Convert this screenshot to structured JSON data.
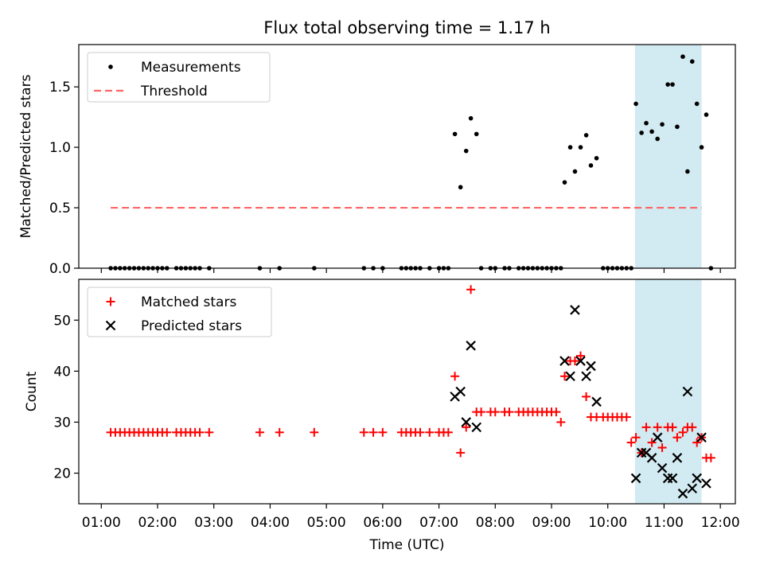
{
  "chart_data": [
    {
      "type": "scatter",
      "title": "Flux total observing time = 1.17 h",
      "xlabel": "",
      "ylabel": "Matched/Predicted stars",
      "xlim": [
        "00:36",
        "12:16"
      ],
      "ylim": [
        0,
        1.85
      ],
      "yticks": [
        "0.0",
        "0.5",
        "1.0",
        "1.5"
      ],
      "grid": false,
      "legend_position": "top-left",
      "highlight_span": {
        "start": "10:29",
        "end": "11:40",
        "color": "#add8e6"
      },
      "threshold": {
        "name": "Threshold",
        "value": 0.5,
        "x_start": "01:10",
        "x_end": "11:40",
        "color": "#ff6666",
        "style": "dashed"
      },
      "series": [
        {
          "name": "Measurements",
          "marker": "dot",
          "color": "#000000",
          "points": [
            [
              "01:10",
              0
            ],
            [
              "01:15",
              0
            ],
            [
              "01:20",
              0
            ],
            [
              "01:25",
              0
            ],
            [
              "01:30",
              0
            ],
            [
              "01:35",
              0
            ],
            [
              "01:40",
              0
            ],
            [
              "01:45",
              0
            ],
            [
              "01:50",
              0
            ],
            [
              "01:55",
              0
            ],
            [
              "02:00",
              0
            ],
            [
              "02:05",
              0
            ],
            [
              "02:10",
              0
            ],
            [
              "02:20",
              0
            ],
            [
              "02:25",
              0
            ],
            [
              "02:30",
              0
            ],
            [
              "02:35",
              0
            ],
            [
              "02:40",
              0
            ],
            [
              "02:45",
              0
            ],
            [
              "02:55",
              0
            ],
            [
              "03:49",
              0
            ],
            [
              "04:10",
              0
            ],
            [
              "04:47",
              0
            ],
            [
              "05:40",
              0
            ],
            [
              "05:50",
              0
            ],
            [
              "06:00",
              0
            ],
            [
              "06:20",
              0
            ],
            [
              "06:25",
              0
            ],
            [
              "06:30",
              0
            ],
            [
              "06:35",
              0
            ],
            [
              "06:40",
              0
            ],
            [
              "06:50",
              0
            ],
            [
              "07:00",
              0
            ],
            [
              "07:05",
              0
            ],
            [
              "07:10",
              0
            ],
            [
              "07:17",
              1.11
            ],
            [
              "07:23",
              0.67
            ],
            [
              "07:29",
              0.97
            ],
            [
              "07:34",
              1.24
            ],
            [
              "07:40",
              1.11
            ],
            [
              "07:45",
              0
            ],
            [
              "07:55",
              0
            ],
            [
              "08:00",
              0
            ],
            [
              "08:10",
              0
            ],
            [
              "08:15",
              0
            ],
            [
              "08:25",
              0
            ],
            [
              "08:30",
              0
            ],
            [
              "08:35",
              0
            ],
            [
              "08:40",
              0
            ],
            [
              "08:45",
              0
            ],
            [
              "08:50",
              0
            ],
            [
              "08:55",
              0
            ],
            [
              "09:00",
              0
            ],
            [
              "09:05",
              0
            ],
            [
              "09:10",
              0
            ],
            [
              "09:14",
              0.71
            ],
            [
              "09:20",
              1.0
            ],
            [
              "09:25",
              0.8
            ],
            [
              "09:31",
              1.0
            ],
            [
              "09:37",
              1.1
            ],
            [
              "09:42",
              0.85
            ],
            [
              "09:48",
              0.91
            ],
            [
              "09:55",
              0
            ],
            [
              "10:00",
              0
            ],
            [
              "10:05",
              0
            ],
            [
              "10:10",
              0
            ],
            [
              "10:15",
              0
            ],
            [
              "10:20",
              0
            ],
            [
              "10:25",
              0
            ],
            [
              "10:30",
              1.36
            ],
            [
              "10:36",
              1.12
            ],
            [
              "10:41",
              1.2
            ],
            [
              "10:47",
              1.13
            ],
            [
              "10:53",
              1.07
            ],
            [
              "10:58",
              1.19
            ],
            [
              "11:04",
              1.52
            ],
            [
              "11:09",
              1.52
            ],
            [
              "11:14",
              1.17
            ],
            [
              "11:20",
              1.75
            ],
            [
              "11:25",
              0.8
            ],
            [
              "11:30",
              1.71
            ],
            [
              "11:35",
              1.36
            ],
            [
              "11:40",
              1.0
            ],
            [
              "11:45",
              1.27
            ],
            [
              "11:50",
              0
            ]
          ]
        }
      ]
    },
    {
      "type": "scatter",
      "title": "",
      "xlabel": "Time (UTC)",
      "ylabel": "Count",
      "xlim": [
        "00:36",
        "12:16"
      ],
      "ylim": [
        14,
        58
      ],
      "xticks": [
        "01:00",
        "02:00",
        "03:00",
        "04:00",
        "05:00",
        "06:00",
        "07:00",
        "08:00",
        "09:00",
        "10:00",
        "11:00",
        "12:00"
      ],
      "yticks": [
        "20",
        "30",
        "40",
        "50"
      ],
      "grid": false,
      "legend_position": "top-left",
      "highlight_span": {
        "start": "10:29",
        "end": "11:40",
        "color": "#add8e6"
      },
      "series": [
        {
          "name": "Matched stars",
          "marker": "plus",
          "color": "#ff0000",
          "points": [
            [
              "01:10",
              28
            ],
            [
              "01:15",
              28
            ],
            [
              "01:20",
              28
            ],
            [
              "01:25",
              28
            ],
            [
              "01:30",
              28
            ],
            [
              "01:35",
              28
            ],
            [
              "01:40",
              28
            ],
            [
              "01:45",
              28
            ],
            [
              "01:50",
              28
            ],
            [
              "01:55",
              28
            ],
            [
              "02:00",
              28
            ],
            [
              "02:05",
              28
            ],
            [
              "02:10",
              28
            ],
            [
              "02:20",
              28
            ],
            [
              "02:25",
              28
            ],
            [
              "02:30",
              28
            ],
            [
              "02:35",
              28
            ],
            [
              "02:40",
              28
            ],
            [
              "02:45",
              28
            ],
            [
              "02:55",
              28
            ],
            [
              "03:49",
              28
            ],
            [
              "04:10",
              28
            ],
            [
              "04:47",
              28
            ],
            [
              "05:40",
              28
            ],
            [
              "05:50",
              28
            ],
            [
              "06:00",
              28
            ],
            [
              "06:20",
              28
            ],
            [
              "06:25",
              28
            ],
            [
              "06:30",
              28
            ],
            [
              "06:35",
              28
            ],
            [
              "06:40",
              28
            ],
            [
              "06:50",
              28
            ],
            [
              "07:00",
              28
            ],
            [
              "07:05",
              28
            ],
            [
              "07:10",
              28
            ],
            [
              "07:17",
              39
            ],
            [
              "07:23",
              24
            ],
            [
              "07:29",
              29
            ],
            [
              "07:34",
              56
            ],
            [
              "07:40",
              32
            ],
            [
              "07:45",
              32
            ],
            [
              "07:55",
              32
            ],
            [
              "08:00",
              32
            ],
            [
              "08:10",
              32
            ],
            [
              "08:15",
              32
            ],
            [
              "08:25",
              32
            ],
            [
              "08:30",
              32
            ],
            [
              "08:35",
              32
            ],
            [
              "08:40",
              32
            ],
            [
              "08:45",
              32
            ],
            [
              "08:50",
              32
            ],
            [
              "08:55",
              32
            ],
            [
              "09:00",
              32
            ],
            [
              "09:05",
              32
            ],
            [
              "09:10",
              30
            ],
            [
              "09:14",
              39
            ],
            [
              "09:20",
              42
            ],
            [
              "09:25",
              42
            ],
            [
              "09:31",
              43
            ],
            [
              "09:37",
              35
            ],
            [
              "09:42",
              31
            ],
            [
              "09:48",
              31
            ],
            [
              "09:55",
              31
            ],
            [
              "10:00",
              31
            ],
            [
              "10:05",
              31
            ],
            [
              "10:10",
              31
            ],
            [
              "10:15",
              31
            ],
            [
              "10:20",
              31
            ],
            [
              "10:25",
              26
            ],
            [
              "10:30",
              27
            ],
            [
              "10:36",
              24
            ],
            [
              "10:41",
              29
            ],
            [
              "10:47",
              26
            ],
            [
              "10:53",
              29
            ],
            [
              "10:58",
              25
            ],
            [
              "11:04",
              29
            ],
            [
              "11:09",
              29
            ],
            [
              "11:14",
              27
            ],
            [
              "11:20",
              28
            ],
            [
              "11:25",
              29
            ],
            [
              "11:30",
              29
            ],
            [
              "11:35",
              26
            ],
            [
              "11:40",
              27
            ],
            [
              "11:45",
              23
            ],
            [
              "11:50",
              23
            ]
          ]
        },
        {
          "name": "Predicted stars",
          "marker": "cross",
          "color": "#000000",
          "points": [
            [
              "07:17",
              35
            ],
            [
              "07:23",
              36
            ],
            [
              "07:29",
              30
            ],
            [
              "07:34",
              45
            ],
            [
              "07:40",
              29
            ],
            [
              "09:14",
              42
            ],
            [
              "09:20",
              39
            ],
            [
              "09:25",
              52
            ],
            [
              "09:31",
              42
            ],
            [
              "09:37",
              39
            ],
            [
              "09:42",
              41
            ],
            [
              "09:48",
              34
            ],
            [
              "10:30",
              19
            ],
            [
              "10:36",
              24
            ],
            [
              "10:41",
              24
            ],
            [
              "10:47",
              23
            ],
            [
              "10:53",
              27
            ],
            [
              "10:58",
              21
            ],
            [
              "11:04",
              19
            ],
            [
              "11:09",
              19
            ],
            [
              "11:14",
              23
            ],
            [
              "11:20",
              16
            ],
            [
              "11:25",
              36
            ],
            [
              "11:30",
              17
            ],
            [
              "11:35",
              19
            ],
            [
              "11:40",
              27
            ],
            [
              "11:45",
              18
            ]
          ]
        }
      ]
    }
  ]
}
